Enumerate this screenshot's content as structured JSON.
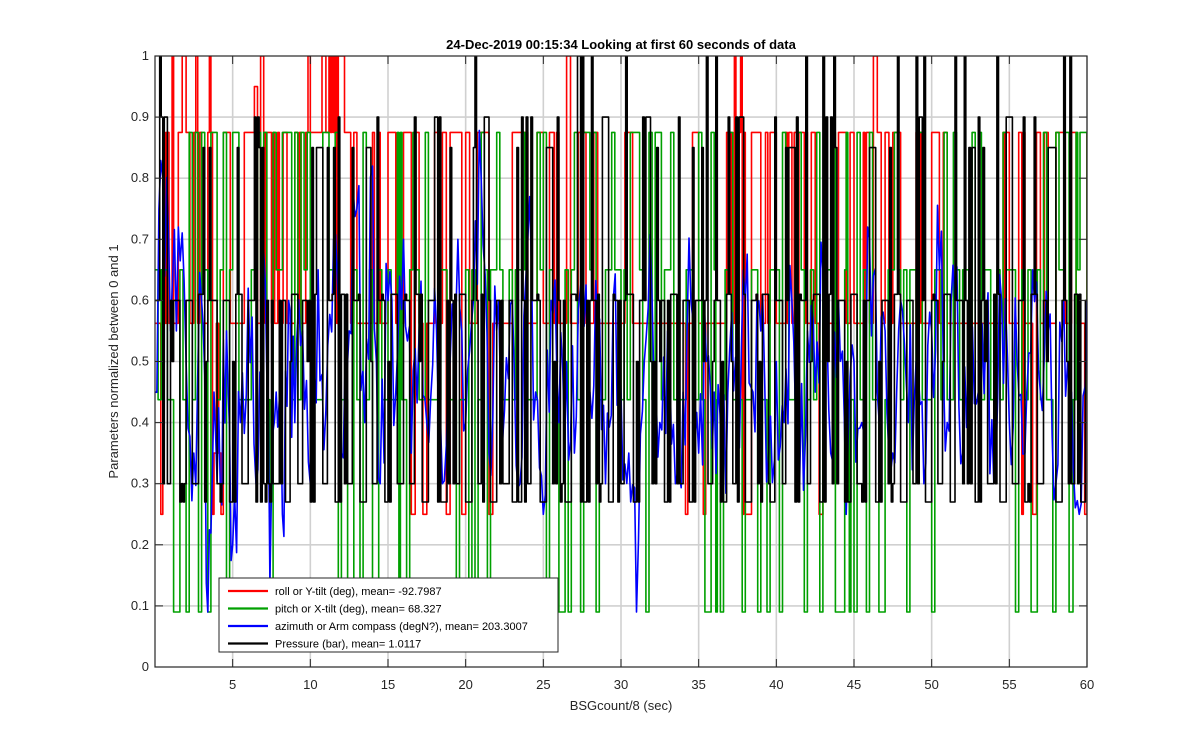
{
  "chart_data": {
    "type": "line",
    "title": "24-Dec-2019 00:15:34 Looking at first 60 seconds of data",
    "xlabel": "BSGcount/8 (sec)",
    "ylabel": "Parameters normalized between 0 and 1",
    "xlim": [
      0,
      60
    ],
    "ylim": [
      0,
      1
    ],
    "xticks": [
      5,
      10,
      15,
      20,
      25,
      30,
      35,
      40,
      45,
      50,
      55,
      60
    ],
    "yticks": [
      0,
      0.1,
      0.2,
      0.3,
      0.4,
      0.5,
      0.6,
      0.7,
      0.8,
      0.9,
      1
    ],
    "grid": true,
    "legend_position": "bottom-left",
    "series": [
      {
        "name": "roll or Y-tilt (deg), mean= -92.7987",
        "color": "#ff0000",
        "levels": [
          0.5625,
          0.875,
          0.5625,
          0.875,
          0.5625,
          1.0,
          0.25
        ],
        "x": [
          0.0,
          0.5,
          0.8,
          1.2,
          1.5,
          2.5,
          3.0,
          3.4,
          3.8,
          4.4,
          5.0,
          6.0,
          6.4,
          6.8,
          7.2,
          7.6,
          8.0,
          9.0,
          9.4,
          10.0,
          11.0,
          11.4,
          11.8,
          12.2,
          13.0,
          14.0,
          14.5,
          15.0,
          15.5,
          16.0,
          17.0,
          18.0,
          19.0,
          20.0,
          21.0,
          22.0,
          23.0,
          24.0,
          24.6,
          25.0,
          25.4,
          26.0,
          27.0,
          28.0,
          29.0,
          30.0,
          31.0,
          32.0,
          33.0,
          34.0,
          34.6,
          35.0,
          35.6,
          36.4,
          36.8,
          37.2,
          37.6,
          38.0,
          38.4,
          39.0,
          39.6,
          40.0,
          40.6,
          41.0,
          41.6,
          42.0,
          43.0,
          44.0,
          45.0,
          45.6,
          46.0,
          47.0,
          48.0,
          49.0,
          49.6,
          50.0,
          51.0,
          52.0,
          53.0,
          54.0,
          54.6,
          55.0,
          55.6,
          56.0,
          57.0,
          58.0,
          58.6,
          59.0,
          59.4,
          60.0
        ],
        "y": [
          0.5625,
          0.875,
          0.875,
          0.5625,
          0.875,
          0.875,
          0.5625,
          0.875,
          0.35,
          0.875,
          0.5625,
          0.875,
          0.95,
          1.0,
          0.875,
          0.875,
          0.5625,
          0.875,
          0.5625,
          0.875,
          0.875,
          1.0,
          1.0,
          0.875,
          0.5625,
          0.875,
          0.5625,
          0.875,
          0.5625,
          0.875,
          0.5625,
          0.875,
          0.875,
          0.875,
          0.875,
          0.5625,
          0.875,
          0.5625,
          0.875,
          0.5625,
          0.875,
          0.5625,
          0.5625,
          0.5625,
          0.5625,
          0.5625,
          0.5625,
          0.5625,
          0.5625,
          0.5625,
          0.875,
          0.5625,
          0.5625,
          0.5625,
          0.875,
          0.5625,
          0.875,
          0.25,
          0.875,
          0.5625,
          0.875,
          0.5625,
          0.875,
          0.5625,
          0.875,
          0.5625,
          0.5625,
          0.875,
          0.5625,
          0.875,
          0.5625,
          0.875,
          0.5625,
          0.875,
          0.5625,
          0.875,
          0.5625,
          0.5625,
          0.5625,
          0.5625,
          0.875,
          0.5625,
          0.875,
          0.5625,
          0.5625,
          0.875,
          0.5625,
          0.875,
          0.5625,
          0.875
        ]
      },
      {
        "name": "pitch or X-tilt (deg), mean= 68.327",
        "color": "#00a000",
        "levels": [
          0.4375,
          0.65,
          0.875,
          0.09
        ],
        "x": [
          0.0,
          0.8,
          1.6,
          2.4,
          3.2,
          4.0,
          4.8,
          5.6,
          6.4,
          7.2,
          8.0,
          8.8,
          9.6,
          10.4,
          11.2,
          12.0,
          12.8,
          13.6,
          14.4,
          15.2,
          15.6,
          16.0,
          16.8,
          17.6,
          18.4,
          19.2,
          20.0,
          20.8,
          21.6,
          22.4,
          23.2,
          24.0,
          24.8,
          25.6,
          26.4,
          27.2,
          28.0,
          28.8,
          29.6,
          30.4,
          31.2,
          32.0,
          32.8,
          33.6,
          34.4,
          35.2,
          36.0,
          36.4,
          36.8,
          37.6,
          38.4,
          39.2,
          40.0,
          40.8,
          41.6,
          42.4,
          43.2,
          44.0,
          44.4,
          44.8,
          45.6,
          46.4,
          47.2,
          48.0,
          48.8,
          49.6,
          50.4,
          51.2,
          52.0,
          52.8,
          53.6,
          54.4,
          55.2,
          56.0,
          56.8,
          57.6,
          58.4,
          59.0,
          59.4,
          60.0
        ],
        "y": [
          0.65,
          0.4375,
          0.65,
          0.4375,
          0.65,
          0.4375,
          0.65,
          0.4375,
          0.65,
          0.4375,
          0.65,
          0.4375,
          0.65,
          0.4375,
          0.65,
          0.4375,
          0.65,
          0.4375,
          0.65,
          0.4375,
          0.875,
          0.4375,
          0.65,
          0.4375,
          0.65,
          0.4375,
          0.65,
          0.4375,
          0.65,
          0.4375,
          0.65,
          0.4375,
          0.65,
          0.4375,
          0.65,
          0.4375,
          0.65,
          0.4375,
          0.65,
          0.4375,
          0.65,
          0.4375,
          0.65,
          0.4375,
          0.65,
          0.4375,
          0.65,
          0.09,
          0.65,
          0.4375,
          0.65,
          0.4375,
          0.65,
          0.4375,
          0.65,
          0.4375,
          0.65,
          0.09,
          0.65,
          0.4375,
          0.65,
          0.4375,
          0.65,
          0.4375,
          0.65,
          0.4375,
          0.65,
          0.4375,
          0.65,
          0.4375,
          0.65,
          0.4375,
          0.65,
          0.4375,
          0.65,
          0.4375,
          0.65,
          0.09,
          0.65,
          0.4375
        ]
      },
      {
        "name": "azimuth or Arm compass (degN?), mean= 203.3007",
        "color": "#0000ff",
        "x": [
          0.0,
          0.5,
          1.0,
          1.5,
          2.0,
          2.5,
          3.0,
          3.4,
          3.8,
          4.2,
          4.6,
          5.0,
          5.5,
          6.0,
          6.5,
          7.0,
          7.4,
          7.8,
          8.2,
          8.6,
          9.0,
          9.5,
          10.0,
          10.5,
          11.0,
          11.5,
          12.0,
          12.5,
          13.0,
          13.5,
          14.0,
          14.5,
          15.0,
          15.5,
          16.0,
          16.5,
          17.0,
          17.5,
          18.0,
          18.5,
          19.0,
          19.5,
          20.0,
          20.5,
          21.0,
          21.5,
          22.0,
          22.5,
          23.0,
          23.5,
          24.0,
          24.5,
          25.0,
          25.5,
          26.0,
          26.5,
          27.0,
          27.5,
          28.0,
          28.5,
          29.0,
          29.5,
          30.0,
          30.5,
          31.0,
          31.5,
          32.0,
          32.5,
          33.0,
          33.5,
          34.0,
          34.5,
          35.0,
          35.5,
          36.0,
          36.5,
          37.0,
          37.5,
          38.0,
          38.5,
          39.0,
          39.5,
          40.0,
          40.5,
          41.0,
          41.5,
          42.0,
          42.5,
          43.0,
          43.5,
          44.0,
          44.5,
          45.0,
          45.5,
          46.0,
          46.5,
          47.0,
          47.5,
          48.0,
          48.5,
          49.0,
          49.5,
          50.0,
          50.5,
          51.0,
          51.5,
          52.0,
          52.5,
          53.0,
          53.5,
          54.0,
          54.5,
          55.0,
          55.5,
          56.0,
          56.5,
          57.0,
          57.5,
          58.0,
          58.5,
          59.0,
          59.5,
          60.0
        ],
        "y": [
          0.45,
          0.8,
          0.55,
          0.72,
          0.5,
          0.35,
          0.6,
          0.09,
          0.45,
          0.3,
          0.55,
          0.2,
          0.4,
          0.62,
          0.3,
          0.68,
          0.14,
          0.45,
          0.25,
          0.6,
          0.4,
          0.55,
          0.3,
          0.65,
          0.42,
          0.7,
          0.35,
          0.55,
          0.75,
          0.4,
          0.82,
          0.3,
          0.6,
          0.45,
          0.7,
          0.35,
          0.55,
          0.4,
          0.62,
          0.3,
          0.5,
          0.7,
          0.4,
          0.6,
          0.8,
          0.35,
          0.55,
          0.42,
          0.6,
          0.3,
          0.7,
          0.45,
          0.25,
          0.6,
          0.4,
          0.5,
          0.35,
          0.65,
          0.45,
          0.55,
          0.3,
          0.6,
          0.45,
          0.35,
          0.09,
          0.5,
          0.6,
          0.4,
          0.55,
          0.3,
          0.45,
          0.6,
          0.35,
          0.5,
          0.45,
          0.3,
          0.52,
          0.4,
          0.6,
          0.45,
          0.55,
          0.35,
          0.5,
          0.4,
          0.6,
          0.3,
          0.55,
          0.45,
          0.65,
          0.35,
          0.6,
          0.25,
          0.5,
          0.4,
          0.7,
          0.45,
          0.55,
          0.35,
          0.6,
          0.4,
          0.5,
          0.3,
          0.55,
          0.65,
          0.4,
          0.6,
          0.35,
          0.5,
          0.45,
          0.55,
          0.3,
          0.6,
          0.4,
          0.5,
          0.35,
          0.65,
          0.45,
          0.55,
          0.3,
          0.6,
          0.45,
          0.25,
          0.6
        ]
      },
      {
        "name": "Pressure (bar), mean= 1.0117",
        "color": "#000000",
        "levels": [
          0.27,
          0.3,
          0.5,
          0.6,
          0.61,
          0.85,
          0.9,
          1.0
        ],
        "x": [
          0.0,
          0.4,
          0.8,
          1.2,
          1.6,
          2.0,
          2.4,
          2.8,
          3.2,
          3.6,
          4.0,
          4.4,
          4.8,
          5.2,
          5.6,
          6.0,
          6.4,
          6.8,
          7.2,
          7.6,
          8.0,
          8.4,
          8.8,
          9.2,
          9.6,
          10.0,
          10.4,
          10.8,
          11.2,
          11.6,
          12.0,
          12.4,
          12.8,
          13.2,
          13.6,
          14.0,
          14.4,
          14.8,
          15.2,
          15.6,
          16.0,
          16.4,
          16.8,
          17.2,
          17.6,
          18.0,
          18.4,
          18.8,
          19.2,
          19.6,
          20.0,
          20.4,
          20.8,
          21.2,
          21.6,
          22.0,
          22.4,
          22.8,
          23.2,
          23.6,
          24.0,
          24.4,
          24.8,
          25.2,
          25.6,
          26.0,
          26.4,
          26.8,
          27.2,
          27.6,
          28.0,
          28.4,
          28.8,
          29.2,
          29.6,
          30.0,
          30.4,
          30.8,
          31.2,
          31.6,
          32.0,
          32.4,
          32.8,
          33.2,
          33.6,
          34.0,
          34.4,
          34.8,
          35.2,
          35.6,
          36.0,
          36.4,
          36.8,
          37.2,
          37.6,
          38.0,
          38.4,
          38.8,
          39.2,
          39.6,
          40.0,
          40.4,
          40.8,
          41.2,
          41.6,
          42.0,
          42.4,
          42.8,
          43.2,
          43.6,
          44.0,
          44.4,
          44.8,
          45.2,
          45.6,
          46.0,
          46.4,
          46.8,
          47.2,
          47.6,
          48.0,
          48.4,
          48.8,
          49.2,
          49.6,
          50.0,
          50.4,
          50.8,
          51.2,
          51.6,
          52.0,
          52.4,
          52.8,
          53.2,
          53.6,
          54.0,
          54.4,
          54.8,
          55.2,
          55.6,
          56.0,
          56.4,
          56.8,
          57.2,
          57.6,
          58.0,
          58.4,
          58.8,
          59.2,
          59.6,
          60.0
        ],
        "y": [
          0.6,
          0.9,
          0.3,
          0.6,
          0.27,
          0.6,
          0.3,
          0.61,
          0.27,
          0.6,
          0.3,
          0.6,
          0.27,
          0.61,
          0.3,
          0.6,
          0.9,
          0.27,
          0.6,
          0.3,
          0.6,
          0.27,
          0.61,
          0.3,
          0.6,
          0.27,
          0.85,
          0.3,
          0.6,
          0.27,
          0.61,
          0.3,
          0.6,
          0.27,
          0.85,
          0.3,
          0.6,
          0.27,
          0.61,
          0.3,
          0.6,
          0.3,
          0.61,
          0.27,
          0.6,
          0.9,
          0.27,
          0.6,
          0.3,
          0.61,
          0.27,
          0.6,
          0.3,
          0.9,
          0.27,
          0.6,
          0.3,
          0.6,
          0.27,
          0.9,
          0.3,
          0.6,
          0.27,
          0.85,
          0.3,
          0.6,
          0.27,
          0.61,
          1.0,
          0.27,
          0.6,
          0.3,
          0.9,
          0.27,
          0.6,
          0.3,
          0.61,
          0.27,
          0.6,
          0.9,
          0.3,
          0.6,
          0.27,
          0.61,
          0.3,
          0.6,
          0.27,
          0.6,
          0.85,
          0.3,
          0.6,
          0.27,
          0.61,
          0.3,
          0.9,
          0.27,
          0.6,
          0.3,
          0.61,
          0.27,
          0.6,
          0.3,
          0.85,
          0.27,
          0.6,
          0.3,
          0.61,
          0.27,
          0.9,
          0.3,
          0.6,
          0.27,
          0.61,
          0.3,
          0.6,
          0.85,
          0.27,
          0.6,
          0.3,
          0.61,
          0.27,
          0.6,
          0.3,
          0.9,
          0.27,
          0.6,
          0.3,
          0.61,
          0.27,
          0.6,
          0.3,
          0.85,
          0.27,
          0.6,
          0.3,
          0.61,
          0.27,
          0.9,
          0.3,
          0.6,
          0.27,
          0.61,
          0.3,
          0.6,
          0.85,
          0.27,
          0.6,
          0.3,
          0.61,
          0.27,
          0.6
        ]
      }
    ]
  }
}
